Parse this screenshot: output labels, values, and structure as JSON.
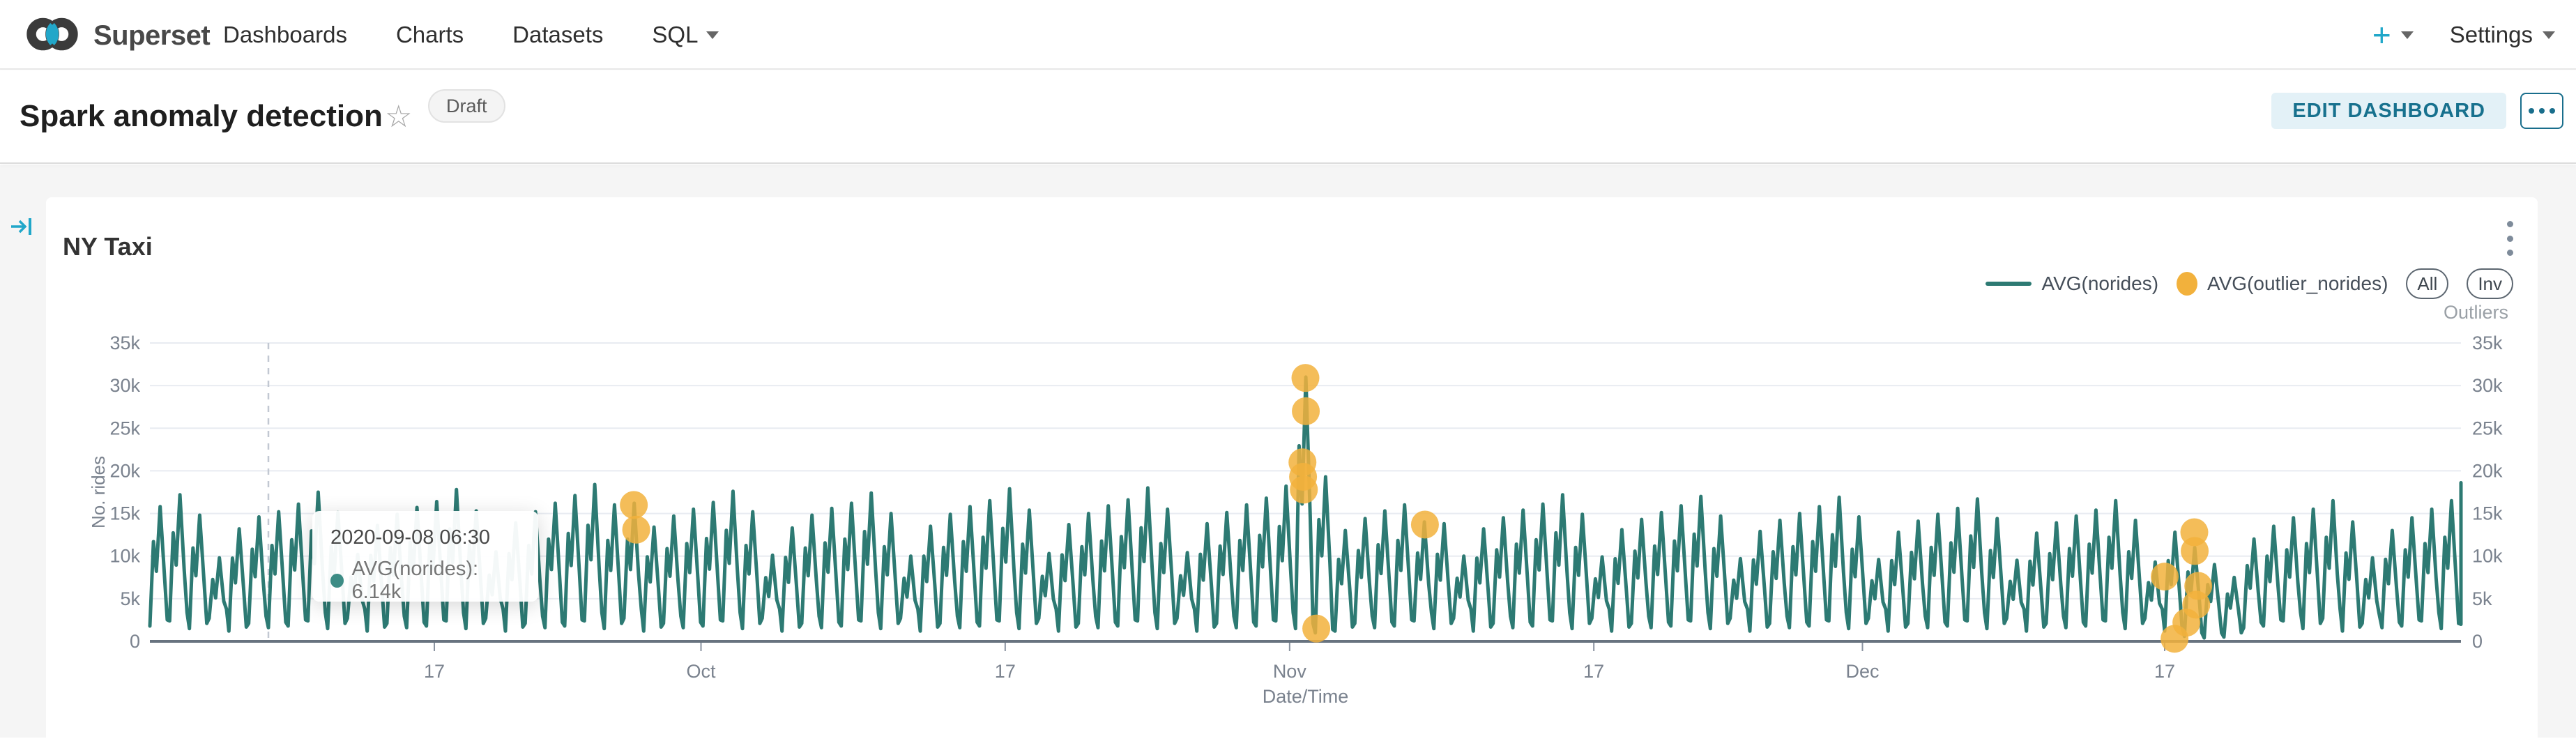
{
  "nav": {
    "brand": "Superset",
    "items": [
      {
        "label": "Dashboards"
      },
      {
        "label": "Charts"
      },
      {
        "label": "Datasets"
      },
      {
        "label": "SQL"
      }
    ],
    "plus_label": "+",
    "settings_label": "Settings"
  },
  "header": {
    "title": "Spark anomaly detection",
    "badge": "Draft",
    "edit_button": "EDIT DASHBOARD"
  },
  "chart": {
    "title": "NY Taxi",
    "legend": [
      {
        "label": "AVG(norides)",
        "type": "line",
        "color": "#2d7a73"
      },
      {
        "label": "AVG(outlier_norides)",
        "type": "dot",
        "color": "#f2b13c"
      }
    ],
    "selector": [
      "All",
      "Inv"
    ],
    "selector_caption": "Outliers"
  },
  "tooltip": {
    "date": "2020-09-08 06:30",
    "text": "AVG(norides): 6.14k"
  },
  "chart_data": {
    "type": "line",
    "title": "NY Taxi",
    "xlabel": "Date/Time",
    "ylabel": "No. rides",
    "legend_position": "top-right",
    "grid": true,
    "x_range": [
      "2020-09-03",
      "2020-12-28"
    ],
    "ylim": [
      0,
      35000
    ],
    "y_axis": {
      "max": 35,
      "step": 5,
      "labels": [
        "0",
        "5k",
        "10k",
        "15k",
        "20k",
        "25k",
        "30k",
        "35k"
      ],
      "dual": true
    },
    "total_days": 117,
    "x_ticks": [
      {
        "day": 14.4,
        "label": "17"
      },
      {
        "day": 27.9,
        "label": "Oct"
      },
      {
        "day": 43.3,
        "label": "17"
      },
      {
        "day": 57.7,
        "label": "Nov"
      },
      {
        "day": 73.1,
        "label": "17"
      },
      {
        "day": 86.7,
        "label": "Dec"
      },
      {
        "day": 102.0,
        "label": "17"
      }
    ],
    "crosshair_day": 6.0,
    "hover_point": {
      "date": "2020-09-08 06:30",
      "series": "AVG(norides)",
      "value_k": 6.14
    },
    "series": [
      {
        "name": "AVG(norides)",
        "color": "#2d7a73",
        "unit": "k rides",
        "day_peaks": [
          15.8,
          17.2,
          14.8,
          9.8,
          13.2,
          14.6,
          15.2,
          16.1,
          17.5,
          15.1,
          10.2,
          13.6,
          14.9,
          15.7,
          16.4,
          17.8,
          15.3,
          10.5,
          13.9,
          15.2,
          16.2,
          17.1,
          18.4,
          16.0,
          16.2,
          13.4,
          14.7,
          15.5,
          16.3,
          17.6,
          15.2,
          10.1,
          13.3,
          14.8,
          15.6,
          16.2,
          17.4,
          15.0,
          10.0,
          13.5,
          14.9,
          15.8,
          16.5,
          17.9,
          15.4,
          10.3,
          13.7,
          15.0,
          15.9,
          16.6,
          18.0,
          15.5,
          10.4,
          13.8,
          15.1,
          16.0,
          16.8,
          18.2,
          31.0,
          19.3,
          13.0,
          14.4,
          15.3,
          16.0,
          14.0,
          13.8,
          10.0,
          13.2,
          14.5,
          15.4,
          16.1,
          17.2,
          14.9,
          9.9,
          13.1,
          14.3,
          15.1,
          15.9,
          17.0,
          14.7,
          9.7,
          12.9,
          14.2,
          15.0,
          15.8,
          16.9,
          14.6,
          9.6,
          12.8,
          14.1,
          14.9,
          15.6,
          16.7,
          14.4,
          9.5,
          12.7,
          13.9,
          14.7,
          15.4,
          16.5,
          14.2,
          9.3,
          12.8,
          11.0,
          9.0,
          7.5,
          12.0,
          13.5,
          14.5,
          15.5,
          16.5,
          14.0,
          9.8,
          13.0,
          14.5,
          15.5,
          16.5,
          18.6
        ],
        "day_troughs": [
          1.8,
          2.4,
          1.5,
          2.7,
          1.2,
          2.1,
          1.6,
          1.8,
          2.4,
          1.5,
          2.7,
          1.2,
          2.1,
          1.6,
          1.8,
          2.4,
          1.5,
          2.7,
          1.2,
          2.1,
          1.6,
          1.8,
          2.4,
          1.5,
          2.7,
          1.2,
          2.1,
          1.6,
          1.8,
          2.4,
          1.5,
          2.7,
          1.2,
          2.1,
          1.6,
          1.8,
          2.4,
          1.5,
          2.7,
          1.2,
          2.1,
          1.6,
          1.8,
          2.4,
          1.5,
          2.7,
          1.2,
          2.1,
          1.6,
          1.8,
          2.4,
          1.5,
          2.7,
          1.2,
          2.1,
          1.6,
          1.8,
          2.4,
          1.5,
          1.0,
          1.2,
          2.1,
          1.6,
          1.8,
          2.4,
          1.5,
          2.7,
          1.2,
          2.1,
          1.6,
          1.8,
          2.4,
          1.5,
          2.7,
          1.2,
          2.1,
          1.6,
          1.8,
          2.4,
          1.5,
          2.7,
          1.2,
          2.1,
          1.6,
          1.8,
          2.4,
          1.5,
          2.7,
          1.2,
          2.1,
          1.6,
          1.8,
          2.4,
          1.5,
          2.7,
          1.2,
          2.1,
          1.6,
          1.8,
          2.4,
          1.5,
          2.7,
          1.2,
          0.6,
          0.4,
          0.5,
          1.6,
          1.8,
          2.4,
          1.5,
          2.7,
          1.2,
          2.1,
          1.6,
          1.8,
          2.4,
          1.5,
          2.0
        ]
      },
      {
        "name": "AVG(outlier_norides)",
        "color": "#f2b13c",
        "points": [
          [
            24.5,
            16.0
          ],
          [
            24.62,
            13.1
          ],
          [
            58.35,
            21.0
          ],
          [
            58.38,
            19.3
          ],
          [
            58.42,
            17.8
          ],
          [
            58.5,
            30.9
          ],
          [
            58.52,
            27.0
          ],
          [
            59.05,
            1.5
          ],
          [
            64.55,
            13.7
          ],
          [
            102.0,
            7.6
          ],
          [
            102.5,
            0.3
          ],
          [
            103.1,
            2.2
          ],
          [
            103.5,
            12.8
          ],
          [
            103.52,
            10.6
          ],
          [
            103.6,
            4.3
          ],
          [
            103.7,
            6.5
          ]
        ]
      }
    ]
  }
}
